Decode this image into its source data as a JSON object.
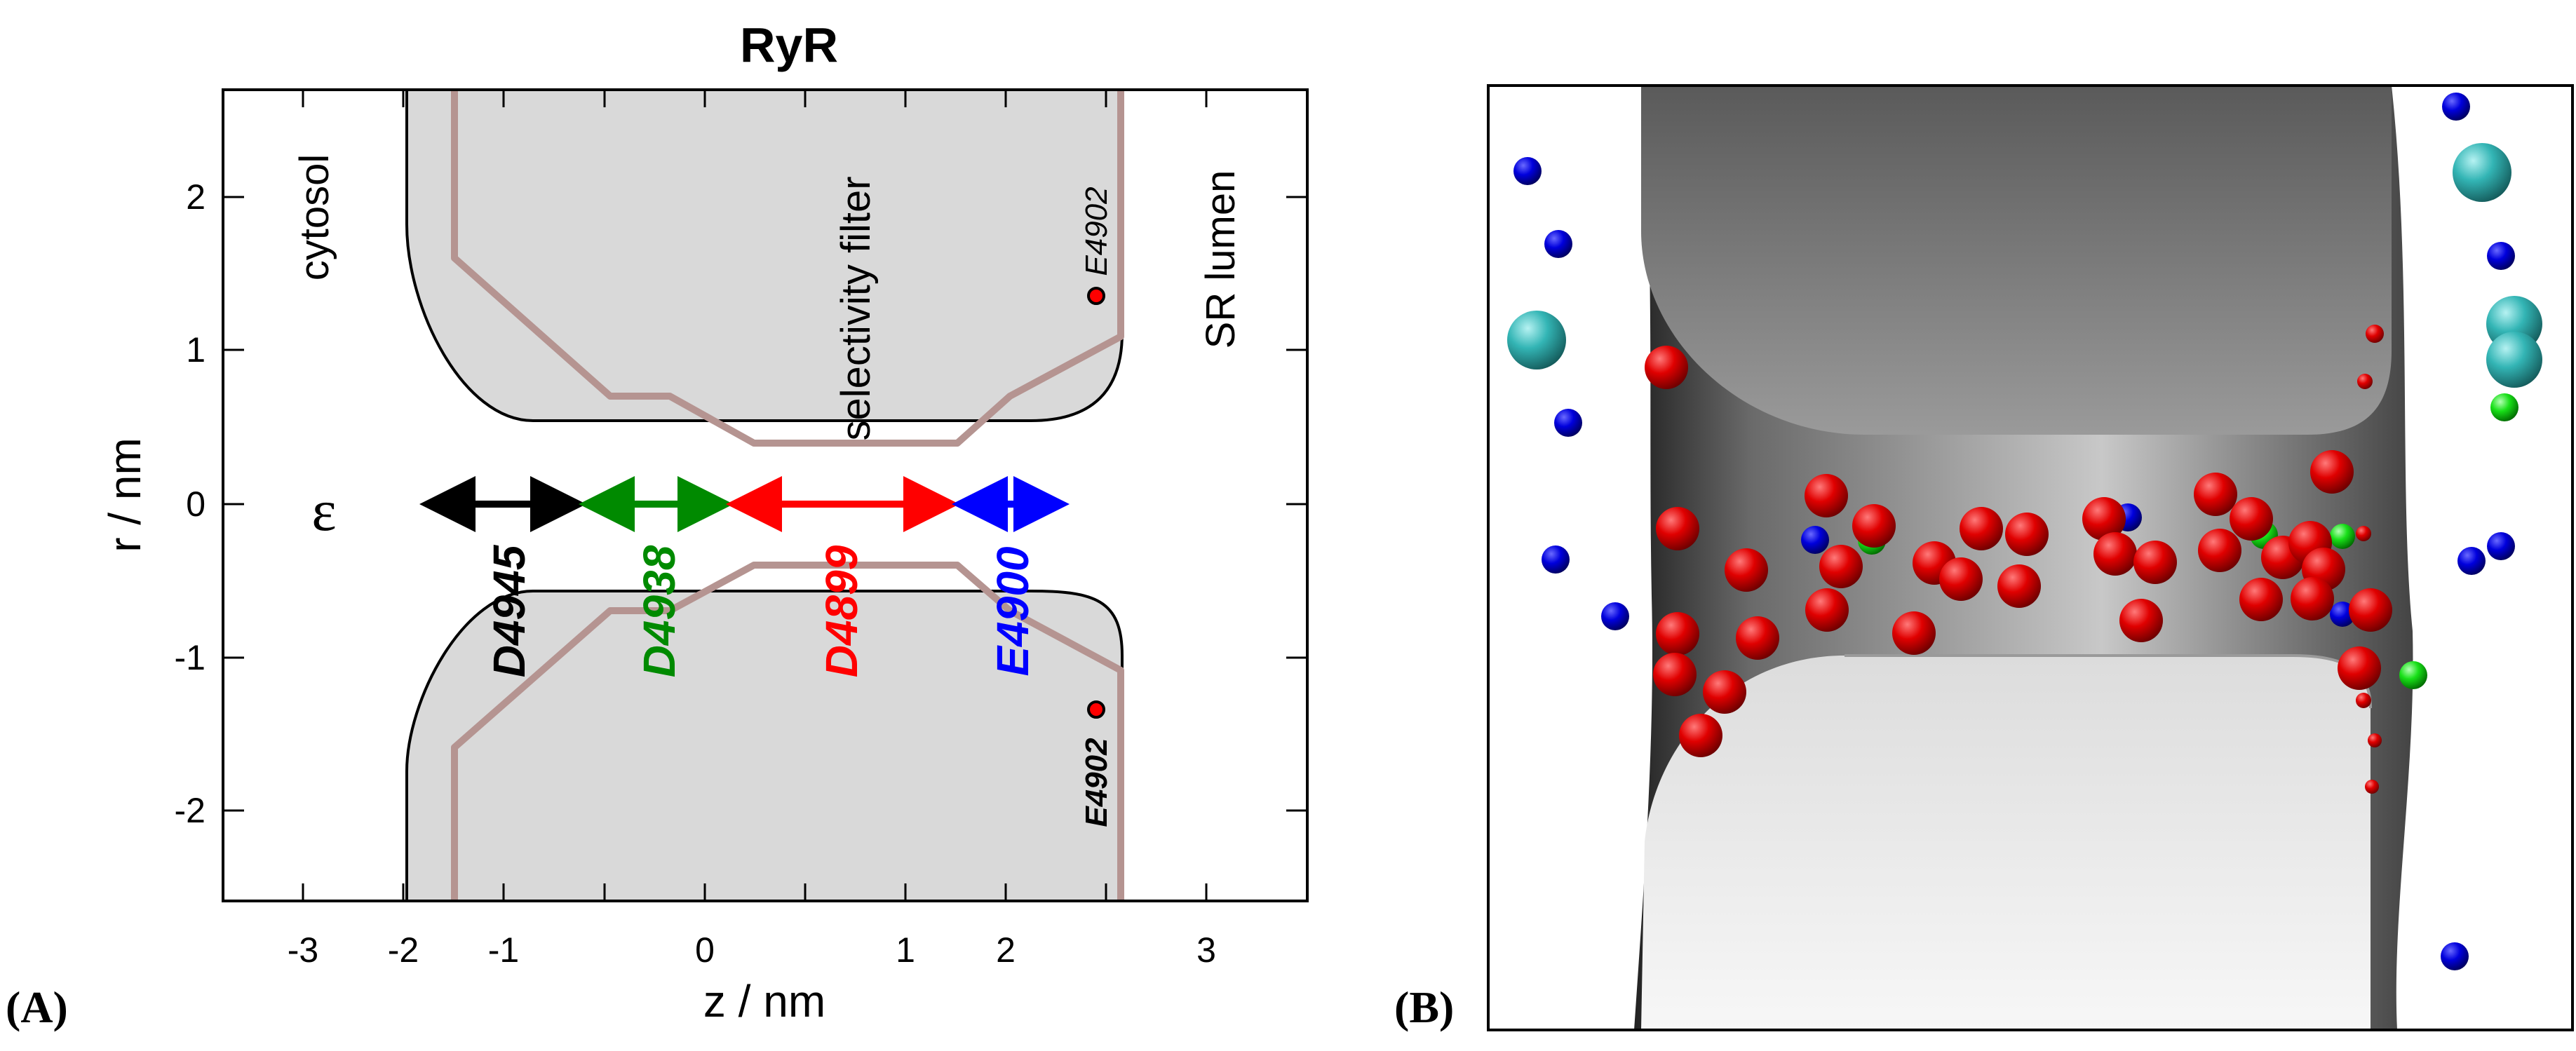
{
  "panel_a": {
    "label": "(A)",
    "title": "RyR",
    "xlabel": "z / nm",
    "ylabel": "r / nm",
    "x_ticks": [
      "-3",
      "-2",
      "-1",
      "0",
      "1",
      "2",
      "3"
    ],
    "y_ticks": [
      "2",
      "1",
      "0",
      "-1",
      "-2"
    ],
    "region_cytosol": "cytosol",
    "region_filter": "selectivity filter",
    "region_lumen": "SR lumen",
    "epsilon": "ε",
    "residues": [
      {
        "name": "D4945",
        "color": "#000000"
      },
      {
        "name": "D4938",
        "color": "#008a00"
      },
      {
        "name": "D4899",
        "color": "#ff0000"
      },
      {
        "name": "E4900",
        "color": "#0000ff"
      }
    ],
    "e4902_top": "E4902",
    "e4902_bottom": "E4902",
    "colors": {
      "protein_fill": "#d9d9d9",
      "pore_outline": "#b59491",
      "e4902_dot": "#ff0000"
    }
  },
  "panel_b": {
    "label": "(B)",
    "colors": {
      "na": "#ff0000",
      "cl": "#0000ff",
      "ca": "#33cccc",
      "k": "#00ff00"
    }
  }
}
